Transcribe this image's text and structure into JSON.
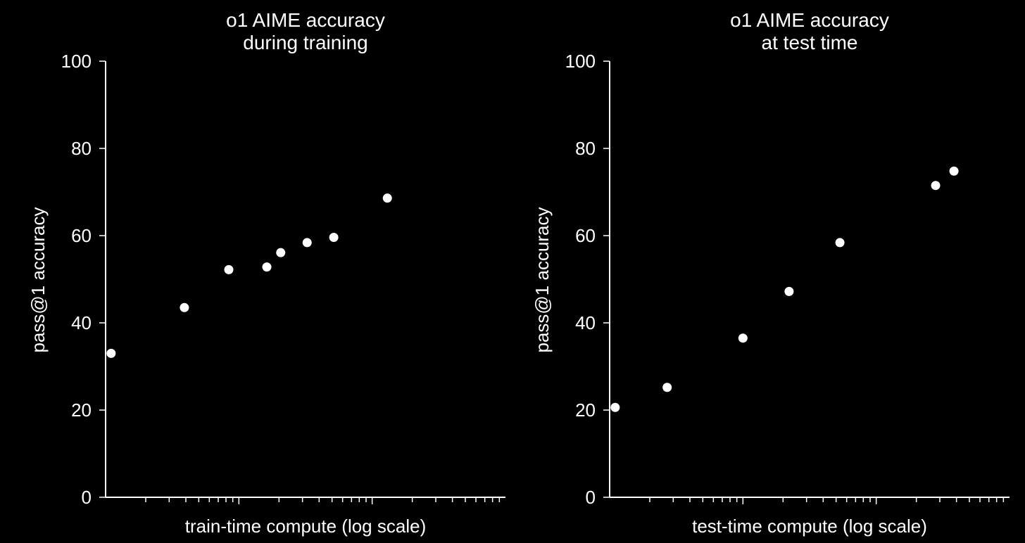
{
  "colors": {
    "background": "#000000",
    "foreground": "#ffffff"
  },
  "chart_data": [
    {
      "type": "scatter",
      "title_lines": [
        "o1 AIME accuracy",
        "during training"
      ],
      "xlabel": "train-time compute (log scale)",
      "ylabel": "pass@1 accuracy",
      "ylim": [
        0,
        100
      ],
      "yticks": [
        0,
        20,
        40,
        60,
        80,
        100
      ],
      "xscale": "log",
      "xlim_decades": [
        0,
        3
      ],
      "x": [
        1.1,
        3.9,
        8.4,
        16.2,
        20.6,
        32.5,
        51.5,
        130
      ],
      "y": [
        33,
        43.5,
        52.2,
        52.8,
        56.1,
        58.4,
        59.6,
        68.6
      ]
    },
    {
      "type": "scatter",
      "title_lines": [
        "o1 AIME accuracy",
        "at test time"
      ],
      "xlabel": "test-time compute (log scale)",
      "ylabel": "pass@1 accuracy",
      "ylim": [
        0,
        100
      ],
      "yticks": [
        0,
        20,
        40,
        60,
        80,
        100
      ],
      "xscale": "log",
      "xlim_decades": [
        0,
        3
      ],
      "x": [
        1.1,
        2.7,
        10.0,
        22.2,
        53.4,
        279,
        383
      ],
      "y": [
        20.6,
        25.2,
        36.5,
        47.2,
        58.4,
        71.5,
        74.8
      ]
    }
  ]
}
